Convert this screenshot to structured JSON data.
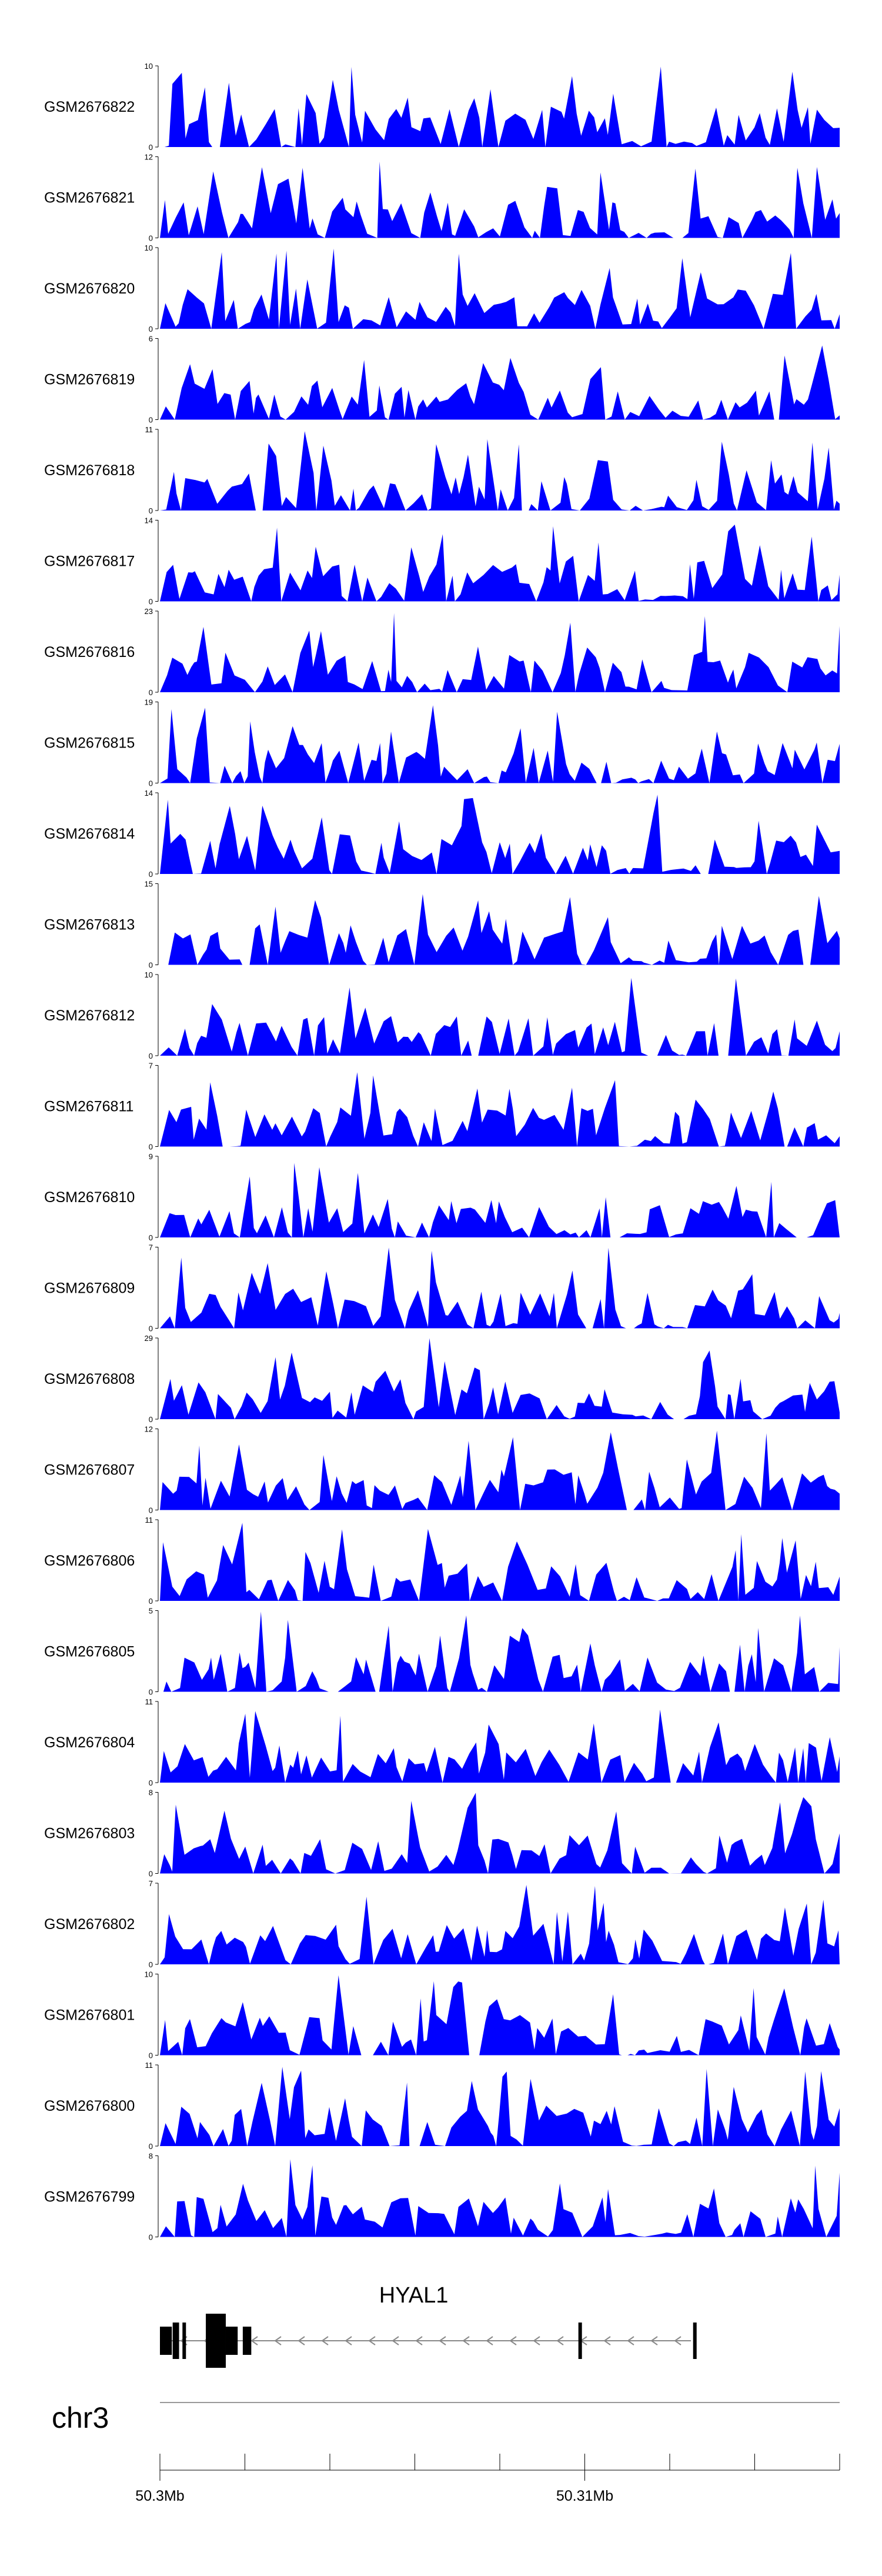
{
  "chart_data": {
    "type": "area",
    "title": "",
    "color": "#0000ff",
    "tracks": [
      {
        "sample": "GSM2676822",
        "ymax": 10,
        "ymin": 0
      },
      {
        "sample": "GSM2676821",
        "ymax": 12,
        "ymin": 0
      },
      {
        "sample": "GSM2676820",
        "ymax": 10,
        "ymin": 0
      },
      {
        "sample": "GSM2676819",
        "ymax": 6,
        "ymin": 0
      },
      {
        "sample": "GSM2676818",
        "ymax": 11,
        "ymin": 0
      },
      {
        "sample": "GSM2676817",
        "ymax": 14,
        "ymin": 0
      },
      {
        "sample": "GSM2676816",
        "ymax": 23,
        "ymin": 0
      },
      {
        "sample": "GSM2676815",
        "ymax": 19,
        "ymin": 0
      },
      {
        "sample": "GSM2676814",
        "ymax": 14,
        "ymin": 0
      },
      {
        "sample": "GSM2676813",
        "ymax": 15,
        "ymin": 0
      },
      {
        "sample": "GSM2676812",
        "ymax": 10,
        "ymin": 0
      },
      {
        "sample": "GSM2676811",
        "ymax": 7,
        "ymin": 0
      },
      {
        "sample": "GSM2676810",
        "ymax": 9,
        "ymin": 0
      },
      {
        "sample": "GSM2676809",
        "ymax": 7,
        "ymin": 0
      },
      {
        "sample": "GSM2676808",
        "ymax": 29,
        "ymin": 0
      },
      {
        "sample": "GSM2676807",
        "ymax": 12,
        "ymin": 0
      },
      {
        "sample": "GSM2676806",
        "ymax": 11,
        "ymin": 0
      },
      {
        "sample": "GSM2676805",
        "ymax": 5,
        "ymin": 0
      },
      {
        "sample": "GSM2676804",
        "ymax": 11,
        "ymin": 0
      },
      {
        "sample": "GSM2676803",
        "ymax": 8,
        "ymin": 0
      },
      {
        "sample": "GSM2676802",
        "ymax": 7,
        "ymin": 0
      },
      {
        "sample": "GSM2676801",
        "ymax": 10,
        "ymin": 0
      },
      {
        "sample": "GSM2676800",
        "ymax": 11,
        "ymin": 0
      },
      {
        "sample": "GSM2676799",
        "ymax": 8,
        "ymin": 0
      }
    ],
    "gene": {
      "name": "HYAL1",
      "strand": "-",
      "start_mb": 50.3,
      "end_mb": 50.3125,
      "exons_mb": [
        [
          50.3,
          50.30028,
          "thin"
        ],
        [
          50.3003,
          50.30045,
          "thick"
        ],
        [
          50.30053,
          50.30058,
          "thick"
        ],
        [
          50.30108,
          50.30155,
          "thick"
        ],
        [
          50.30155,
          50.30183,
          "mid"
        ],
        [
          50.30195,
          50.30215,
          "mid"
        ],
        [
          50.30985,
          50.30993,
          "thick"
        ],
        [
          50.31255,
          50.31262,
          "thick"
        ]
      ]
    },
    "chromosome": "chr3",
    "xaxis": {
      "range_mb": [
        50.3,
        50.316
      ],
      "ticks_mb": [
        50.3,
        50.302,
        50.304,
        50.306,
        50.308,
        50.31,
        50.312,
        50.314,
        50.316
      ],
      "labeled_ticks": [
        {
          "value_mb": 50.3,
          "label": "50.3Mb"
        },
        {
          "value_mb": 50.31,
          "label": "50.31Mb"
        }
      ]
    }
  }
}
